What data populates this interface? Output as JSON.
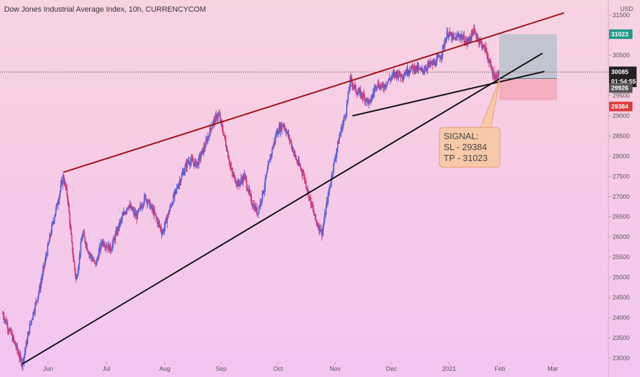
{
  "chart_data": {
    "type": "candlestick",
    "title": "Dow Jones Industrial Average Index, 10h, CURRENCYCOM",
    "currency": "USD",
    "x_labels": [
      "Jun",
      "Jul",
      "Aug",
      "Sep",
      "Oct",
      "Nov",
      "Dec",
      "2021",
      "Feb",
      "Mar"
    ],
    "y_ticks": [
      23000,
      23500,
      24000,
      24500,
      25000,
      25500,
      26000,
      26500,
      27000,
      27500,
      28000,
      28500,
      29000,
      29500,
      30000,
      30500,
      31000,
      31500
    ],
    "ylim": [
      22800,
      31700
    ],
    "price_path": [
      [
        0.0,
        24100
      ],
      [
        0.6,
        23300
      ],
      [
        0.9,
        22850
      ],
      [
        1.3,
        23900
      ],
      [
        1.7,
        24700
      ],
      [
        2.0,
        25500
      ],
      [
        2.3,
        26300
      ],
      [
        2.6,
        27000
      ],
      [
        2.8,
        27500
      ],
      [
        3.0,
        27000
      ],
      [
        3.2,
        25800
      ],
      [
        3.4,
        24900
      ],
      [
        3.7,
        26100
      ],
      [
        4.0,
        25600
      ],
      [
        4.3,
        25300
      ],
      [
        4.6,
        25900
      ],
      [
        5.0,
        25700
      ],
      [
        5.4,
        26300
      ],
      [
        5.8,
        26800
      ],
      [
        6.2,
        26500
      ],
      [
        6.6,
        27000
      ],
      [
        7.0,
        26600
      ],
      [
        7.4,
        26100
      ],
      [
        7.8,
        26800
      ],
      [
        8.2,
        27400
      ],
      [
        8.6,
        27900
      ],
      [
        9.0,
        27800
      ],
      [
        9.4,
        28300
      ],
      [
        9.7,
        28800
      ],
      [
        10.0,
        29050
      ],
      [
        10.3,
        28400
      ],
      [
        10.6,
        27600
      ],
      [
        10.9,
        27300
      ],
      [
        11.2,
        27500
      ],
      [
        11.5,
        26900
      ],
      [
        11.8,
        26600
      ],
      [
        12.1,
        27200
      ],
      [
        12.4,
        28000
      ],
      [
        12.7,
        28600
      ],
      [
        13.0,
        28800
      ],
      [
        13.3,
        28400
      ],
      [
        13.6,
        27900
      ],
      [
        13.9,
        27600
      ],
      [
        14.2,
        27000
      ],
      [
        14.5,
        26400
      ],
      [
        14.8,
        26100
      ],
      [
        15.0,
        26800
      ],
      [
        15.3,
        27700
      ],
      [
        15.6,
        28500
      ],
      [
        15.9,
        29100
      ],
      [
        16.1,
        29900
      ],
      [
        16.4,
        29600
      ],
      [
        16.7,
        29500
      ],
      [
        17.0,
        29300
      ],
      [
        17.3,
        29800
      ],
      [
        17.6,
        29700
      ],
      [
        17.9,
        29900
      ],
      [
        18.2,
        30050
      ],
      [
        18.5,
        30000
      ],
      [
        18.8,
        30150
      ],
      [
        19.1,
        30200
      ],
      [
        19.4,
        30100
      ],
      [
        19.7,
        30250
      ],
      [
        20.0,
        30300
      ],
      [
        20.3,
        30500
      ],
      [
        20.6,
        31050
      ],
      [
        20.9,
        30900
      ],
      [
        21.2,
        31000
      ],
      [
        21.5,
        30800
      ],
      [
        21.8,
        31100
      ],
      [
        22.1,
        30850
      ],
      [
        22.4,
        30600
      ],
      [
        22.6,
        30200
      ],
      [
        22.8,
        29950
      ],
      [
        23.0,
        30050
      ]
    ],
    "current_price": 30085,
    "take_profit": 31023,
    "entry": 29926,
    "stop_loss": 29384,
    "countdown": "01:54:55",
    "trendlines": [
      {
        "name": "resistance",
        "color": "#a01010",
        "from": [
          2.8,
          27600
        ],
        "to": [
          26.0,
          31550
        ]
      },
      {
        "name": "support",
        "color": "#111111",
        "from": [
          0.9,
          22850
        ],
        "to": [
          25.0,
          30550
        ]
      },
      {
        "name": "short-support",
        "color": "#111111",
        "from": [
          16.2,
          29000
        ],
        "to": [
          25.1,
          30100
        ]
      }
    ],
    "annotation": {
      "lines": [
        "SIGNAL:",
        "SL - 29384",
        "TP - 31023"
      ]
    },
    "colors": {
      "tp_badge": "#22998a",
      "sl_badge": "#e23b3b",
      "price_badge": "#222222",
      "entry_badge": "#555555",
      "profit_zone": "#b9c3cb",
      "loss_zone": "#f3a8b8"
    }
  }
}
